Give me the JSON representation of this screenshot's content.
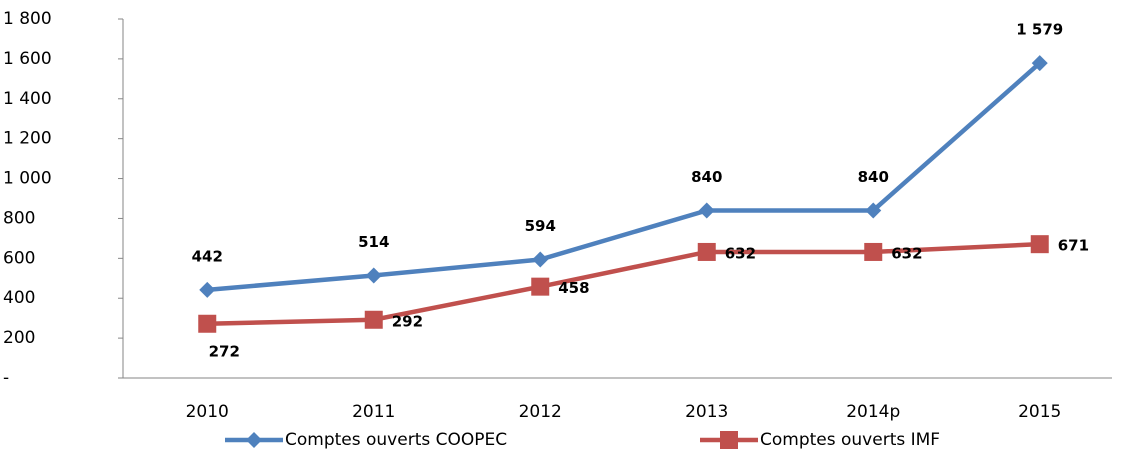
{
  "chart_data": {
    "type": "line",
    "categories": [
      "2010",
      "2011",
      "2012",
      "2013",
      "2014p",
      "2015"
    ],
    "series": [
      {
        "name": "Comptes ouverts COOPEC",
        "color": "#4f81bd",
        "values": [
          442,
          514,
          594,
          840,
          840,
          1579
        ],
        "value_labels": [
          "442",
          "514",
          "594",
          "840",
          "840",
          "1 579"
        ]
      },
      {
        "name": "Comptes ouverts IMF",
        "color": "#c0504d",
        "values": [
          272,
          292,
          458,
          632,
          632,
          671
        ]
      }
    ],
    "ylim": [
      0,
      1800
    ],
    "yticks": [
      {
        "value": 0,
        "label": "-"
      },
      200,
      400,
      600,
      800,
      {
        "value": 1000,
        "label": "1 000"
      },
      {
        "value": 1200,
        "label": "1 200"
      },
      {
        "value": 1400,
        "label": "1 400"
      },
      {
        "value": 1600,
        "label": "1 600"
      },
      {
        "value": 1800,
        "label": "1 800"
      }
    ],
    "legend": "bottom"
  }
}
